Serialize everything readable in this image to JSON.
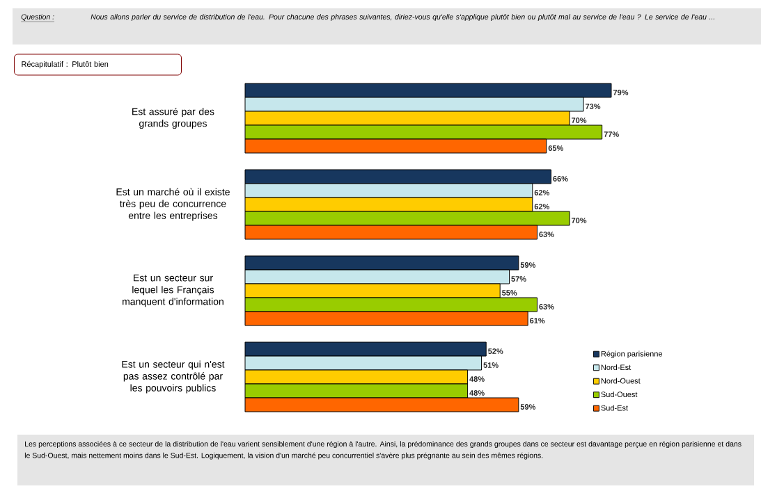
{
  "chart_data": {
    "type": "bar",
    "orientation": "horizontal",
    "title": "Nous allons parler du service de distribution de l'eau. Pour chacune des phrases suivantes, diriez-vous qu'elle s'applique plutôt bien ou plutôt mal au service de l'eau ? Le service de l'eau ...",
    "subtitle": "Récapitulatif : Plutôt bien",
    "annotations": [
      "Question :",
      "Les perceptions associées à ce secteur de la distribution de l'eau varient sensiblement d'une région à l'autre. Ainsi, la prédominance des grands groupes dans ce secteur est davantage perçue en région parisienne et dans le Sud-Ouest, mais nettement moins dans le Sud-Est. Logiquement, la vision d'un marché peu concurrentiel s'avère plus prégnante au sein des mêmes régions."
    ],
    "categories": [
      "Est assuré par des grands groupes",
      "Est un marché où  il existe très peu de concurrence entre les entreprises",
      "Est un secteur sur lequel les Français manquent d'information",
      "Est un secteur qui n'est pas assez contrôlé par les pouvoirs publics"
    ],
    "legend": "bottom right",
    "series": [
      {
        "name": "Région parisienne",
        "color": "#17375e",
        "values": [
          79,
          66,
          59,
          52
        ],
        "value_labels": [
          "79%",
          "66%",
          "59%",
          "52%"
        ]
      },
      {
        "name": "Nord-Est",
        "color": "#c6e7ec",
        "values": [
          73,
          62,
          57,
          51
        ],
        "value_labels": [
          "73%",
          "62%",
          "57%",
          "51%"
        ]
      },
      {
        "name": "Nord-Ouest",
        "color": "#ffcc00",
        "values": [
          70,
          62,
          55,
          48
        ],
        "value_labels": [
          "70%",
          "62%",
          "55%",
          "48%"
        ]
      },
      {
        "name": "Sud-Ouest",
        "color": "#99cc00",
        "values": [
          77,
          70,
          63,
          48
        ],
        "value_labels": [
          "77%",
          "70%",
          "63%",
          "48%"
        ]
      },
      {
        "name": "Sud-Est",
        "color": "#ff6600",
        "values": [
          65,
          63,
          61,
          59
        ],
        "value_labels": [
          "65%",
          "63%",
          "61%",
          "59%"
        ]
      }
    ]
  }
}
